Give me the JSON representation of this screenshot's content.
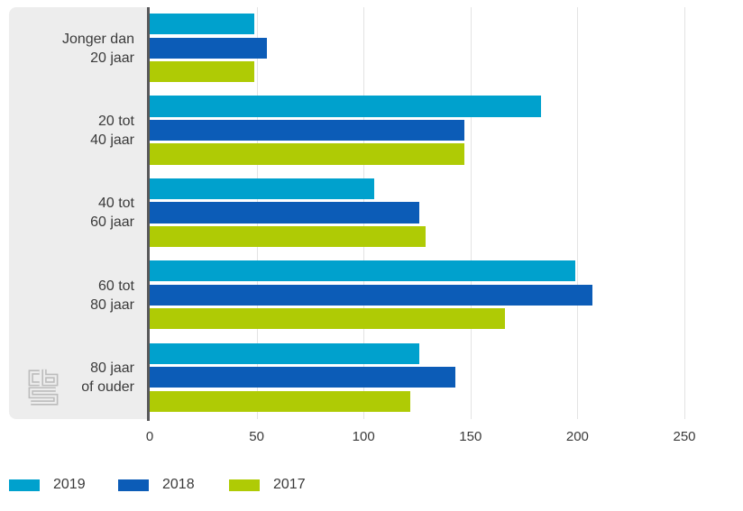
{
  "figure": {
    "background": "#ffffff",
    "panel_color": "#ededed",
    "axis_line_color": "#58585a",
    "gridline_color": "#e3e3e3",
    "text_color": "#3a3a3a",
    "logo_icon": "cbs-logo"
  },
  "chart_data": {
    "type": "bar",
    "orientation": "horizontal",
    "title": "",
    "xlabel": "",
    "ylabel": "",
    "categories": [
      {
        "line1": "Jonger dan",
        "line2": "20 jaar"
      },
      {
        "line1": "20 tot",
        "line2": "40 jaar"
      },
      {
        "line1": "40 tot",
        "line2": "60 jaar"
      },
      {
        "line1": "60 tot",
        "line2": "80 jaar"
      },
      {
        "line1": "80 jaar",
        "line2": "of ouder"
      }
    ],
    "series": [
      {
        "name": "2019",
        "color": "#00a1cd",
        "values": [
          49,
          183,
          105,
          199,
          126
        ]
      },
      {
        "name": "2018",
        "color": "#0c5cb7",
        "values": [
          55,
          147,
          126,
          207,
          143
        ]
      },
      {
        "name": "2017",
        "color": "#afcb05",
        "values": [
          49,
          147,
          129,
          166,
          122
        ]
      }
    ],
    "x_ticks": [
      0,
      50,
      100,
      150,
      200,
      250
    ],
    "xlim": [
      0,
      277
    ],
    "grid": true,
    "legend_position": "bottom"
  }
}
